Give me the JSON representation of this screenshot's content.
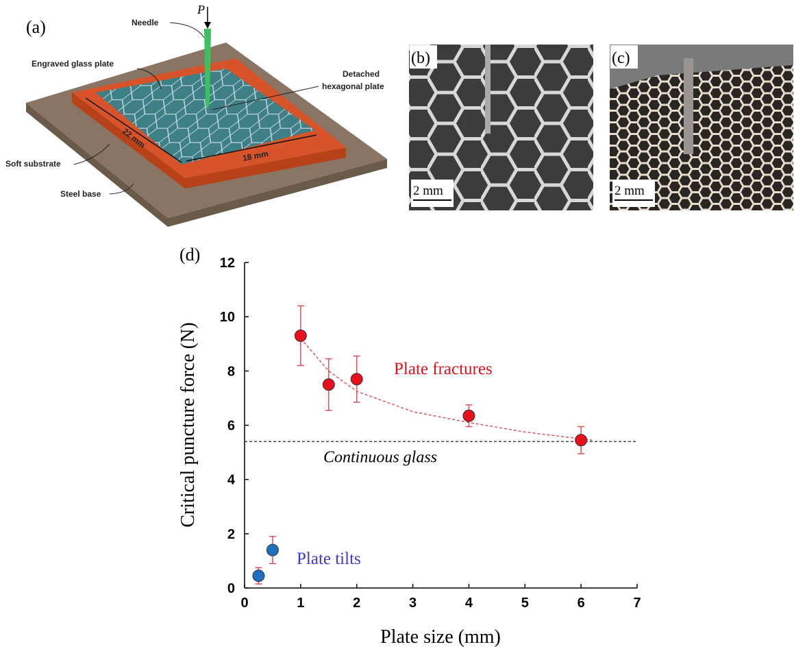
{
  "panels": {
    "a": {
      "label": "(a)",
      "load": "P",
      "needle": "Needle",
      "glass": "Engraved glass plate",
      "detached": [
        "Detached",
        "hexagonal plate"
      ],
      "length": "22 mm",
      "width": "18 mm",
      "substrate": "Soft substrate",
      "base": "Steel base"
    },
    "b": {
      "label": "(b)",
      "scale": "2 mm"
    },
    "c": {
      "label": "(c)",
      "scale": "2 mm"
    }
  },
  "chart_data": {
    "type": "scatter",
    "label": "(d)",
    "x_label": "Plate size (mm)",
    "y_label": "Critical puncture force (N)",
    "xlim": [
      0,
      7
    ],
    "xticks": [
      0,
      1,
      2,
      3,
      4,
      5,
      6,
      7
    ],
    "ylim": [
      0,
      12
    ],
    "yticks": [
      0,
      2,
      4,
      6,
      8,
      10,
      12
    ],
    "series": [
      {
        "color": "#e8101c",
        "error_color": "#e0505a",
        "annotation": "Plate fractures",
        "x": [
          1,
          1.5,
          2,
          4,
          6
        ],
        "values": [
          9.3,
          7.5,
          7.7,
          6.35,
          5.45
        ],
        "errors": [
          1.1,
          0.95,
          0.85,
          0.4,
          0.5
        ]
      },
      {
        "color": "#1f6fc0",
        "error_color": "#e0505a",
        "annotation": "Plate tilts",
        "annotation_color": "#3a3ad0",
        "x": [
          0.25,
          0.5
        ],
        "values": [
          0.45,
          1.4
        ],
        "errors": [
          0.3,
          0.5
        ]
      }
    ],
    "trend": {
      "color": "#e0505a",
      "x": [
        1,
        1.5,
        2,
        3,
        4,
        5,
        6,
        6.2
      ],
      "values": [
        9.2,
        8.0,
        7.25,
        6.5,
        6.1,
        5.75,
        5.5,
        5.45
      ]
    },
    "reference_line": {
      "value": 5.4,
      "label": "Continuous glass"
    }
  }
}
